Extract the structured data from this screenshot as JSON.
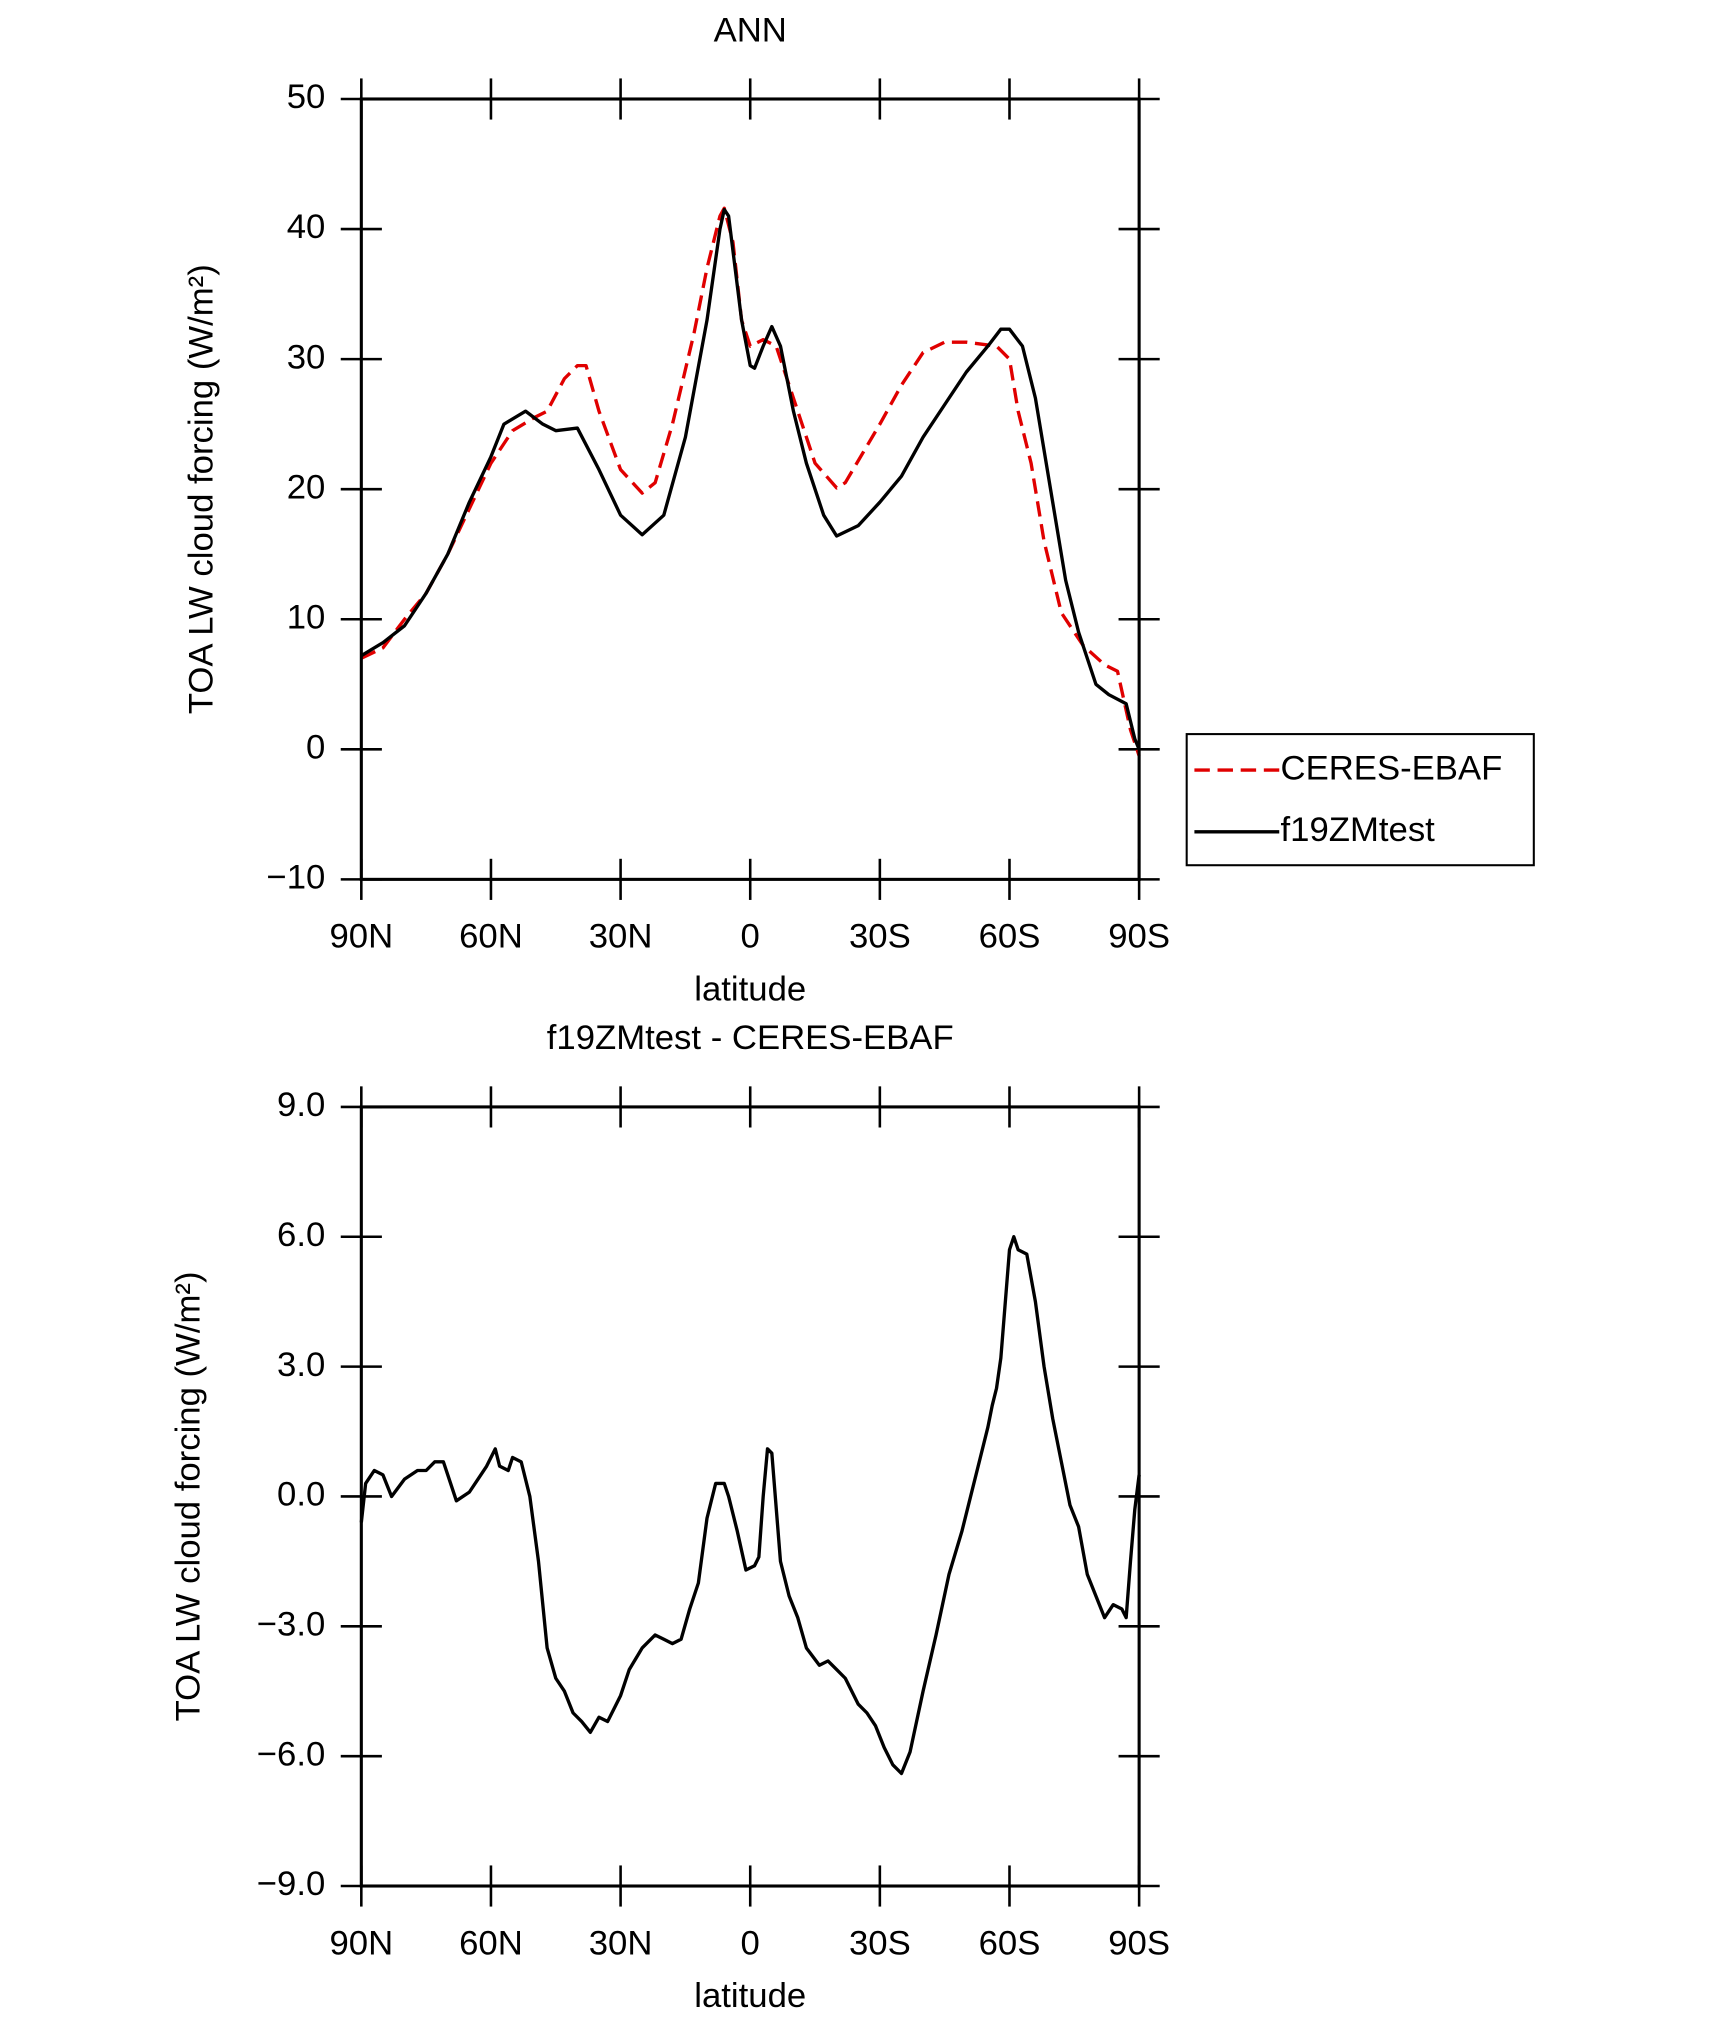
{
  "chart_data": [
    {
      "type": "line",
      "title": "ANN",
      "x_label": "latitude",
      "y_label": "TOA LW cloud forcing (W/m²)",
      "xlim": [
        90,
        -90
      ],
      "xticks": [
        {
          "value": 90,
          "label": "90N"
        },
        {
          "value": 60,
          "label": "60N"
        },
        {
          "value": 30,
          "label": "30N"
        },
        0,
        {
          "value": -30,
          "label": "30S"
        },
        {
          "value": -60,
          "label": "60S"
        },
        {
          "value": -90,
          "label": "90S"
        }
      ],
      "ylim": [
        -10,
        50
      ],
      "yticks": [
        {
          "value": -10,
          "label": "−10"
        },
        0,
        10,
        20,
        30,
        40,
        50
      ],
      "legend": "right",
      "series": [
        {
          "name": "CERES-EBAF",
          "color": "#e00000",
          "dash": true,
          "x": [
            90,
            85,
            80,
            75,
            70,
            65,
            60,
            55,
            50,
            47,
            43,
            40,
            38,
            35,
            30,
            25,
            22,
            18,
            13,
            10,
            7,
            6,
            4,
            2,
            0,
            -3,
            -6,
            -10,
            -15,
            -20,
            -22,
            -30,
            -35,
            -40,
            -45,
            -50,
            -57,
            -60,
            -62,
            -65,
            -68,
            -72,
            -77,
            -82,
            -85,
            -88,
            -90
          ],
          "values": [
            7,
            7.8,
            10,
            12,
            15,
            18.5,
            22,
            24.5,
            25.5,
            26,
            28.5,
            29.5,
            29.5,
            26,
            21.5,
            19.7,
            20.5,
            25,
            32,
            37,
            41,
            41.6,
            39,
            33,
            31,
            31.5,
            31,
            27,
            22,
            20.1,
            20.5,
            25,
            28,
            30.5,
            31.3,
            31.3,
            31,
            30,
            26,
            22,
            16,
            10.5,
            8,
            6.5,
            6,
            1.5,
            -0.5
          ]
        },
        {
          "name": "f19ZMtest",
          "color": "#000000",
          "dash": false,
          "x": [
            90,
            85,
            80,
            75,
            70,
            65,
            60,
            57,
            52,
            48,
            45,
            40,
            35,
            30,
            25,
            20,
            15,
            10,
            7,
            6,
            5,
            2,
            0,
            -1,
            -3,
            -5,
            -7,
            -10,
            -13,
            -17,
            -20,
            -25,
            -30,
            -35,
            -40,
            -45,
            -50,
            -55,
            -58,
            -60,
            -63,
            -66,
            -70,
            -73,
            -76,
            -80,
            -83,
            -87,
            -89,
            -90
          ],
          "values": [
            7.2,
            8.2,
            9.5,
            12,
            15,
            19,
            22.5,
            25,
            26,
            25,
            24.5,
            24.7,
            21.5,
            18,
            16.5,
            18,
            24,
            33,
            40,
            41.5,
            41,
            33,
            29.5,
            29.3,
            31,
            32.5,
            31,
            26,
            22,
            18,
            16.4,
            17.2,
            19,
            21,
            24,
            26.5,
            29,
            31,
            32.3,
            32.3,
            31,
            27,
            19,
            13,
            9,
            5,
            4.2,
            3.5,
            0.8,
            0
          ]
        }
      ]
    },
    {
      "type": "line",
      "title": "f19ZMtest - CERES-EBAF",
      "x_label": "latitude",
      "y_label": "TOA LW cloud forcing (W/m²)",
      "xlim": [
        90,
        -90
      ],
      "xticks": [
        {
          "value": 90,
          "label": "90N"
        },
        {
          "value": 60,
          "label": "60N"
        },
        {
          "value": 30,
          "label": "30N"
        },
        0,
        {
          "value": -30,
          "label": "30S"
        },
        {
          "value": -60,
          "label": "60S"
        },
        {
          "value": -90,
          "label": "90S"
        }
      ],
      "ylim": [
        -9,
        9
      ],
      "yticks": [
        {
          "value": -9,
          "label": "−9.0"
        },
        {
          "value": -6,
          "label": "−6.0"
        },
        {
          "value": -3,
          "label": "−3.0"
        },
        {
          "value": 0,
          "label": "0.0"
        },
        {
          "value": 3,
          "label": "3.0"
        },
        {
          "value": 6,
          "label": "6.0"
        },
        {
          "value": 9,
          "label": "9.0"
        }
      ],
      "series": [
        {
          "color": "#000000",
          "dash": false,
          "x": [
            90,
            89,
            87,
            85,
            83,
            80,
            77,
            75,
            73,
            71,
            70,
            68,
            65,
            63,
            61,
            59,
            58,
            56,
            55,
            53,
            51,
            49,
            47,
            45,
            43,
            41,
            39,
            37,
            35,
            33,
            30,
            28,
            25,
            22,
            20,
            18,
            16,
            14,
            12,
            10,
            8,
            6,
            5,
            3,
            1,
            -1,
            -2,
            -3,
            -4,
            -5,
            -7,
            -9,
            -11,
            -13,
            -16,
            -18,
            -20,
            -22,
            -25,
            -27,
            -29,
            -31,
            -33,
            -35,
            -37,
            -40,
            -43,
            -46,
            -49,
            -51,
            -53,
            -55,
            -56,
            -57,
            -58,
            -60,
            -61,
            -62,
            -64,
            -66,
            -68,
            -70,
            -72,
            -74,
            -76,
            -78,
            -80,
            -82,
            -84,
            -86,
            -87,
            -88,
            -89,
            -90
          ],
          "values": [
            -0.6,
            0.3,
            0.6,
            0.5,
            0,
            0.4,
            0.6,
            0.6,
            0.8,
            0.8,
            0.5,
            -0.1,
            0.1,
            0.4,
            0.7,
            1.1,
            0.7,
            0.6,
            0.9,
            0.8,
            0,
            -1.5,
            -3.5,
            -4.2,
            -4.5,
            -5.0,
            -5.2,
            -5.45,
            -5.1,
            -5.2,
            -4.6,
            -4.0,
            -3.5,
            -3.2,
            -3.3,
            -3.4,
            -3.3,
            -2.6,
            -2.0,
            -0.5,
            0.3,
            0.3,
            0,
            -0.8,
            -1.7,
            -1.6,
            -1.4,
            0,
            1.1,
            1.0,
            -1.5,
            -2.3,
            -2.8,
            -3.5,
            -3.9,
            -3.8,
            -4.0,
            -4.2,
            -4.8,
            -5.0,
            -5.3,
            -5.8,
            -6.2,
            -6.4,
            -5.9,
            -4.5,
            -3.2,
            -1.8,
            -0.8,
            0,
            0.8,
            1.6,
            2.1,
            2.5,
            3.2,
            5.7,
            6.0,
            5.7,
            5.6,
            4.5,
            3.0,
            1.8,
            0.8,
            -0.2,
            -0.7,
            -1.8,
            -2.3,
            -2.8,
            -2.5,
            -2.6,
            -2.8,
            -1.5,
            -0.3,
            0.5
          ]
        }
      ]
    }
  ]
}
